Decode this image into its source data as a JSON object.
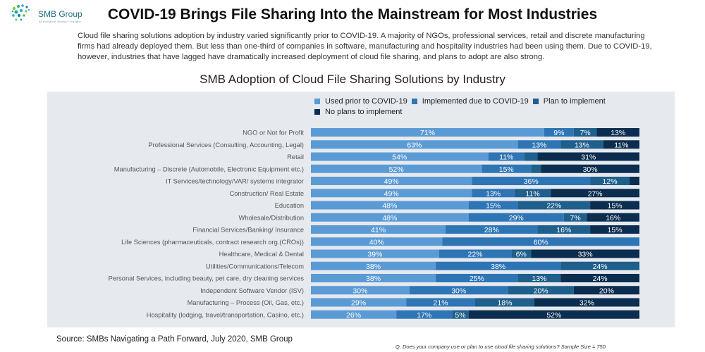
{
  "logo": {
    "name": "SMB Group",
    "tagline": "Actionable Market Insight"
  },
  "page_title": "COVID-19 Brings File Sharing Into the Mainstream for Most Industries",
  "intro_text": "Cloud file sharing solutions adoption by industry varied significantly prior to COVID-19.  A majority of NGOs, professional services, retail and discrete manufacturing firms had already deployed them. But less than one-third of companies in software, manufacturing and hospitality industries had been using them.  Due to COVID-19, however,  industries that have lagged have dramatically increased deployment of cloud file sharing, and plans to adopt are also strong.",
  "source": "Source: SMBs Navigating a Path Forward, July 2020, SMB Group",
  "footnote": "Q. Does your company use or plan to use cloud file sharing solutions? Sample Size = 750",
  "colors": {
    "used_prior": "#5b9bd5",
    "implemented_due": "#2e75b6",
    "plan": "#1f5f8b",
    "no_plans": "#0b2d4f",
    "panel": "#e6e9ee"
  },
  "chart_data": {
    "type": "bar",
    "orientation": "horizontal",
    "stacked": true,
    "title": "SMB Adoption of Cloud File Sharing Solutions by Industry",
    "legend_position": "top-right",
    "categories": [
      "NGO or Not for Profit",
      "Professional Services (Consulting, Accounting, Legal)",
      "Retail",
      "Manufacturing – Discrete (Automobile, Electronic Equipment etc.)",
      "IT Services/technology/VAR/ systems integrator",
      "Construction/ Real Estate",
      "Education",
      "Wholesale/Distribution",
      "Financial Services/Banking/ Insurance",
      "Life Sciences (pharmaceuticals, contract research org.(CROs))",
      "Healthcare, Medical & Dental",
      "Utilities/Communications/Telecom",
      "Personal Services, including beauty, pet care, dry cleaning services",
      "Independent Software Vendor (ISV)",
      "Manufacturing – Process (Oil, Gas, etc.)",
      "Hospitality (lodging, travel/transportation, Casino, etc.)"
    ],
    "series": [
      {
        "name": "Used prior to COVID-19",
        "color": "#5b9bd5",
        "values": [
          71,
          63,
          54,
          52,
          49,
          49,
          48,
          48,
          41,
          40,
          39,
          38,
          38,
          30,
          29,
          26
        ],
        "labels": [
          "71%",
          "63%",
          "54%",
          "52%",
          "49%",
          "49%",
          "48%",
          "48%",
          "41%",
          "40%",
          "39%",
          "38%",
          "38%",
          "30%",
          "29%",
          "26%"
        ]
      },
      {
        "name": "Implemented due to COVID-19",
        "color": "#2e75b6",
        "values": [
          9,
          13,
          11,
          15,
          36,
          13,
          15,
          29,
          28,
          60,
          22,
          38,
          25,
          30,
          21,
          17
        ],
        "labels": [
          "9%",
          "13%",
          "11%",
          "15%",
          "36%",
          "13%",
          "15%",
          "29%",
          "28%",
          "60%",
          "22%",
          "38%",
          "25%",
          "30%",
          "21%",
          "17%"
        ]
      },
      {
        "name": "Plan to implement",
        "color": "#1f5f8b",
        "values": [
          7,
          13,
          4,
          3,
          12,
          11,
          22,
          7,
          16,
          0,
          6,
          24,
          13,
          20,
          18,
          5
        ],
        "labels": [
          "7%",
          "13%",
          "",
          "",
          "12%",
          "11%",
          "22%",
          "7%",
          "16%",
          "",
          "6%",
          "24%",
          "13%",
          "20%",
          "18%",
          "5%"
        ]
      },
      {
        "name": "No plans to implement",
        "color": "#0b2d4f",
        "values": [
          13,
          11,
          31,
          30,
          3,
          27,
          15,
          16,
          15,
          0,
          33,
          0,
          24,
          20,
          32,
          52
        ],
        "labels": [
          "13%",
          "11%",
          "31%",
          "30%",
          "",
          "27%",
          "15%",
          "16%",
          "15%",
          "",
          "33%",
          "",
          "24%",
          "20%",
          "32%",
          "52%"
        ]
      }
    ]
  }
}
